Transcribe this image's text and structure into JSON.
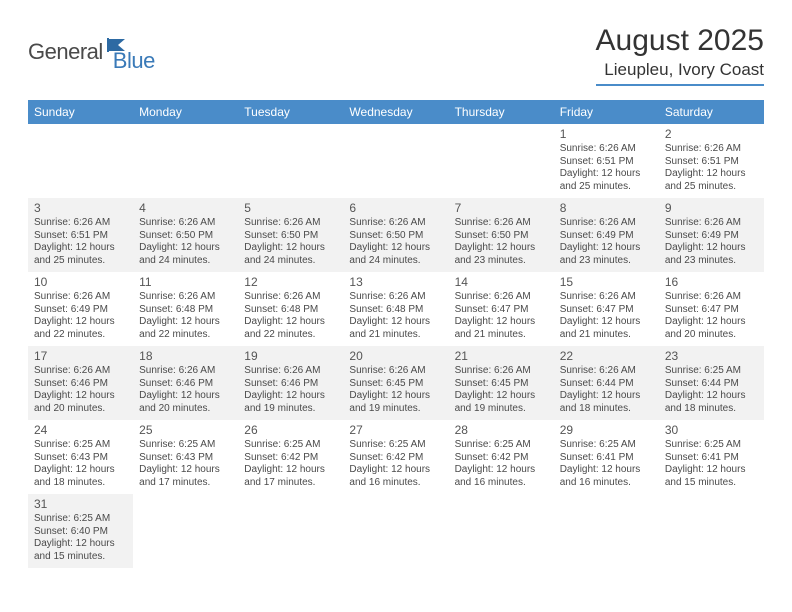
{
  "logo": {
    "text1": "General",
    "text2": "Blue"
  },
  "title": "August 2025",
  "location": "Lieupleu, Ivory Coast",
  "colors": {
    "header_bg": "#4a8cc9",
    "header_text": "#ffffff",
    "odd_row_bg": "#f2f2f2",
    "even_row_bg": "#ffffff",
    "text": "#4a4a4a",
    "logo_gray": "#4a4a4a",
    "logo_blue": "#3a7ab8"
  },
  "day_headers": [
    "Sunday",
    "Monday",
    "Tuesday",
    "Wednesday",
    "Thursday",
    "Friday",
    "Saturday"
  ],
  "weeks": [
    [
      null,
      null,
      null,
      null,
      null,
      {
        "n": "1",
        "sr": "Sunrise: 6:26 AM",
        "ss": "Sunset: 6:51 PM",
        "dl": "Daylight: 12 hours and 25 minutes."
      },
      {
        "n": "2",
        "sr": "Sunrise: 6:26 AM",
        "ss": "Sunset: 6:51 PM",
        "dl": "Daylight: 12 hours and 25 minutes."
      }
    ],
    [
      {
        "n": "3",
        "sr": "Sunrise: 6:26 AM",
        "ss": "Sunset: 6:51 PM",
        "dl": "Daylight: 12 hours and 25 minutes."
      },
      {
        "n": "4",
        "sr": "Sunrise: 6:26 AM",
        "ss": "Sunset: 6:50 PM",
        "dl": "Daylight: 12 hours and 24 minutes."
      },
      {
        "n": "5",
        "sr": "Sunrise: 6:26 AM",
        "ss": "Sunset: 6:50 PM",
        "dl": "Daylight: 12 hours and 24 minutes."
      },
      {
        "n": "6",
        "sr": "Sunrise: 6:26 AM",
        "ss": "Sunset: 6:50 PM",
        "dl": "Daylight: 12 hours and 24 minutes."
      },
      {
        "n": "7",
        "sr": "Sunrise: 6:26 AM",
        "ss": "Sunset: 6:50 PM",
        "dl": "Daylight: 12 hours and 23 minutes."
      },
      {
        "n": "8",
        "sr": "Sunrise: 6:26 AM",
        "ss": "Sunset: 6:49 PM",
        "dl": "Daylight: 12 hours and 23 minutes."
      },
      {
        "n": "9",
        "sr": "Sunrise: 6:26 AM",
        "ss": "Sunset: 6:49 PM",
        "dl": "Daylight: 12 hours and 23 minutes."
      }
    ],
    [
      {
        "n": "10",
        "sr": "Sunrise: 6:26 AM",
        "ss": "Sunset: 6:49 PM",
        "dl": "Daylight: 12 hours and 22 minutes."
      },
      {
        "n": "11",
        "sr": "Sunrise: 6:26 AM",
        "ss": "Sunset: 6:48 PM",
        "dl": "Daylight: 12 hours and 22 minutes."
      },
      {
        "n": "12",
        "sr": "Sunrise: 6:26 AM",
        "ss": "Sunset: 6:48 PM",
        "dl": "Daylight: 12 hours and 22 minutes."
      },
      {
        "n": "13",
        "sr": "Sunrise: 6:26 AM",
        "ss": "Sunset: 6:48 PM",
        "dl": "Daylight: 12 hours and 21 minutes."
      },
      {
        "n": "14",
        "sr": "Sunrise: 6:26 AM",
        "ss": "Sunset: 6:47 PM",
        "dl": "Daylight: 12 hours and 21 minutes."
      },
      {
        "n": "15",
        "sr": "Sunrise: 6:26 AM",
        "ss": "Sunset: 6:47 PM",
        "dl": "Daylight: 12 hours and 21 minutes."
      },
      {
        "n": "16",
        "sr": "Sunrise: 6:26 AM",
        "ss": "Sunset: 6:47 PM",
        "dl": "Daylight: 12 hours and 20 minutes."
      }
    ],
    [
      {
        "n": "17",
        "sr": "Sunrise: 6:26 AM",
        "ss": "Sunset: 6:46 PM",
        "dl": "Daylight: 12 hours and 20 minutes."
      },
      {
        "n": "18",
        "sr": "Sunrise: 6:26 AM",
        "ss": "Sunset: 6:46 PM",
        "dl": "Daylight: 12 hours and 20 minutes."
      },
      {
        "n": "19",
        "sr": "Sunrise: 6:26 AM",
        "ss": "Sunset: 6:46 PM",
        "dl": "Daylight: 12 hours and 19 minutes."
      },
      {
        "n": "20",
        "sr": "Sunrise: 6:26 AM",
        "ss": "Sunset: 6:45 PM",
        "dl": "Daylight: 12 hours and 19 minutes."
      },
      {
        "n": "21",
        "sr": "Sunrise: 6:26 AM",
        "ss": "Sunset: 6:45 PM",
        "dl": "Daylight: 12 hours and 19 minutes."
      },
      {
        "n": "22",
        "sr": "Sunrise: 6:26 AM",
        "ss": "Sunset: 6:44 PM",
        "dl": "Daylight: 12 hours and 18 minutes."
      },
      {
        "n": "23",
        "sr": "Sunrise: 6:25 AM",
        "ss": "Sunset: 6:44 PM",
        "dl": "Daylight: 12 hours and 18 minutes."
      }
    ],
    [
      {
        "n": "24",
        "sr": "Sunrise: 6:25 AM",
        "ss": "Sunset: 6:43 PM",
        "dl": "Daylight: 12 hours and 18 minutes."
      },
      {
        "n": "25",
        "sr": "Sunrise: 6:25 AM",
        "ss": "Sunset: 6:43 PM",
        "dl": "Daylight: 12 hours and 17 minutes."
      },
      {
        "n": "26",
        "sr": "Sunrise: 6:25 AM",
        "ss": "Sunset: 6:42 PM",
        "dl": "Daylight: 12 hours and 17 minutes."
      },
      {
        "n": "27",
        "sr": "Sunrise: 6:25 AM",
        "ss": "Sunset: 6:42 PM",
        "dl": "Daylight: 12 hours and 16 minutes."
      },
      {
        "n": "28",
        "sr": "Sunrise: 6:25 AM",
        "ss": "Sunset: 6:42 PM",
        "dl": "Daylight: 12 hours and 16 minutes."
      },
      {
        "n": "29",
        "sr": "Sunrise: 6:25 AM",
        "ss": "Sunset: 6:41 PM",
        "dl": "Daylight: 12 hours and 16 minutes."
      },
      {
        "n": "30",
        "sr": "Sunrise: 6:25 AM",
        "ss": "Sunset: 6:41 PM",
        "dl": "Daylight: 12 hours and 15 minutes."
      }
    ],
    [
      {
        "n": "31",
        "sr": "Sunrise: 6:25 AM",
        "ss": "Sunset: 6:40 PM",
        "dl": "Daylight: 12 hours and 15 minutes."
      },
      null,
      null,
      null,
      null,
      null,
      null
    ]
  ]
}
